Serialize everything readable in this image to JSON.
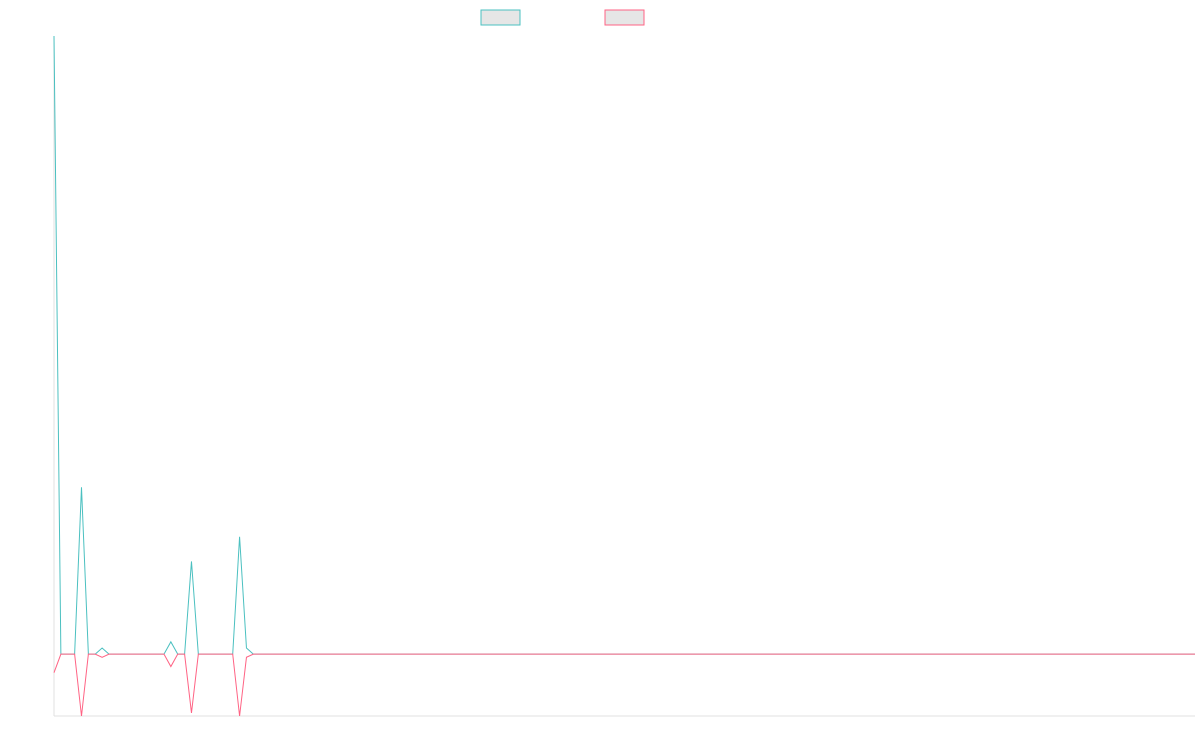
{
  "chart_data": {
    "type": "line",
    "ylim": [
      -10,
      100
    ],
    "series": [
      {
        "color": "#4bc0c0",
        "values": [
          100,
          0,
          0,
          0,
          27,
          0,
          0,
          1,
          0,
          0,
          0,
          0,
          0,
          0,
          0,
          0,
          0,
          2,
          0,
          0,
          15,
          0,
          0,
          0,
          0,
          0,
          0,
          19,
          1,
          0,
          0,
          0,
          0,
          0,
          0,
          0,
          0,
          0,
          0,
          0,
          0,
          0,
          0,
          0,
          0,
          0,
          0,
          0,
          0,
          0,
          0,
          0,
          0,
          0,
          0,
          0,
          0,
          0,
          0,
          0,
          0,
          0,
          0,
          0,
          0,
          0,
          0,
          0,
          0,
          0,
          0,
          0,
          0,
          0,
          0,
          0,
          0,
          0,
          0,
          0,
          0,
          0,
          0,
          0,
          0,
          0,
          0,
          0,
          0,
          0,
          0,
          0,
          0,
          0,
          0,
          0,
          0,
          0,
          0,
          0,
          0,
          0,
          0,
          0,
          0,
          0,
          0,
          0,
          0,
          0,
          0,
          0,
          0,
          0,
          0,
          0,
          0,
          0,
          0,
          0,
          0,
          0,
          0,
          0,
          0,
          0,
          0,
          0,
          0,
          0,
          0,
          0,
          0,
          0,
          0,
          0,
          0,
          0,
          0,
          0,
          0,
          0,
          0,
          0,
          0,
          0,
          0,
          0,
          0,
          0,
          0,
          0,
          0,
          0,
          0,
          0,
          0,
          0,
          0,
          0,
          0,
          0,
          0,
          0,
          0,
          0,
          0
        ]
      },
      {
        "color": "#ff6384",
        "values": [
          -3,
          0,
          0,
          0,
          -10,
          0,
          0,
          -0.5,
          0,
          0,
          0,
          0,
          0,
          0,
          0,
          0,
          0,
          -2,
          0,
          0,
          -9.5,
          0,
          0,
          0,
          0,
          0,
          0,
          -10,
          -0.5,
          0,
          0,
          0,
          0,
          0,
          0,
          0,
          0,
          0,
          0,
          0,
          0,
          0,
          0,
          0,
          0,
          0,
          0,
          0,
          0,
          0,
          0,
          0,
          0,
          0,
          0,
          0,
          0,
          0,
          0,
          0,
          0,
          0,
          0,
          0,
          0,
          0,
          0,
          0,
          0,
          0,
          0,
          0,
          0,
          0,
          0,
          0,
          0,
          0,
          0,
          0,
          0,
          0,
          0,
          0,
          0,
          0,
          0,
          0,
          0,
          0,
          0,
          0,
          0,
          0,
          0,
          0,
          0,
          0,
          0,
          0,
          0,
          0,
          0,
          0,
          0,
          0,
          0,
          0,
          0,
          0,
          0,
          0,
          0,
          0,
          0,
          0,
          0,
          0,
          0,
          0,
          0,
          0,
          0,
          0,
          0,
          0,
          0,
          0,
          0,
          0,
          0,
          0,
          0,
          0,
          0,
          0,
          0,
          0,
          0,
          0,
          0,
          0,
          0,
          0,
          0,
          0,
          0,
          0,
          0,
          0,
          0,
          0,
          0,
          0,
          0,
          0,
          0,
          0,
          0,
          0,
          0,
          0,
          0,
          0,
          0,
          0,
          0
        ]
      }
    ]
  }
}
